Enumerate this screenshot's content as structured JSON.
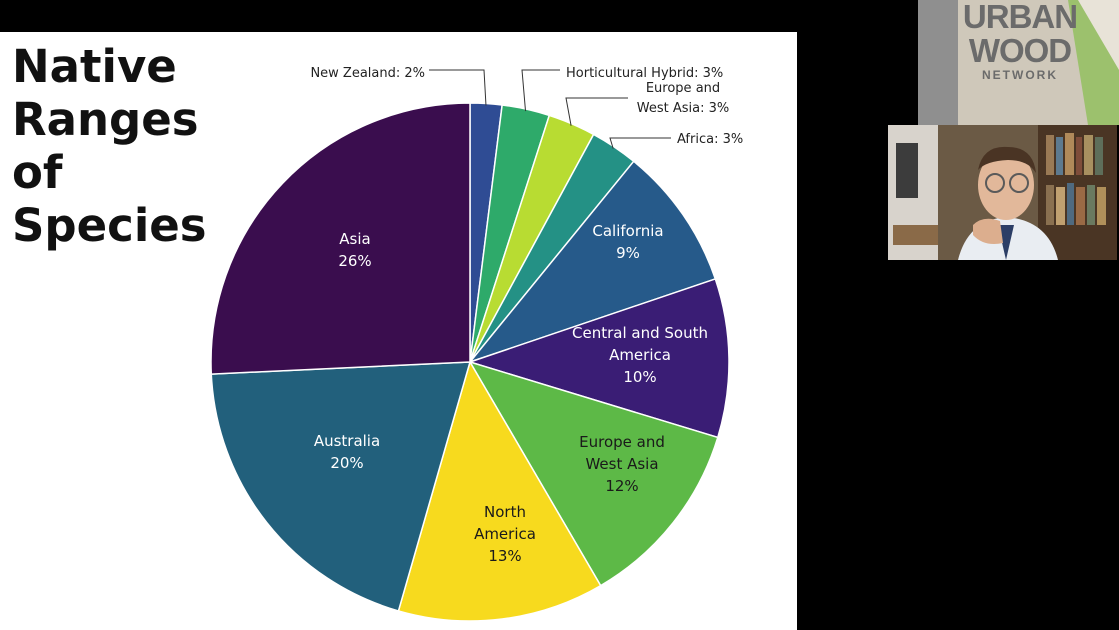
{
  "slide": {
    "title_lines": [
      "Native",
      "Ranges of",
      "Species"
    ]
  },
  "chart_data": {
    "type": "pie",
    "title": "Native Ranges of Species",
    "slices": [
      {
        "name": "New Zealand",
        "value": 2,
        "label_text": "New Zealand: 2%",
        "color": "#2f4c94"
      },
      {
        "name": "Horticultural Hybrid",
        "value": 3,
        "label_text": "Horticultural Hybrid: 3%",
        "color": "#2eaa6a"
      },
      {
        "name": "Europe and West Asia",
        "value": 3,
        "label_lines": [
          "Europe and",
          "West Asia: 3%"
        ],
        "color": "#b8dc32"
      },
      {
        "name": "Africa",
        "value": 3,
        "label_text": "Africa: 3%",
        "color": "#249185"
      },
      {
        "name": "California",
        "value": 9,
        "label_lines": [
          "California",
          "9%"
        ],
        "color": "#265a8a"
      },
      {
        "name": "Central and South America",
        "value": 10,
        "label_lines": [
          "Central and South",
          "America",
          "10%"
        ],
        "color": "#3a1d75"
      },
      {
        "name": "Europe and West Asia",
        "value": 12,
        "label_lines": [
          "Europe and",
          "West Asia",
          "12%"
        ],
        "color": "#5db947"
      },
      {
        "name": "North America",
        "value": 13,
        "label_lines": [
          "North",
          "America",
          "13%"
        ],
        "color": "#f7da1e"
      },
      {
        "name": "Australia",
        "value": 20,
        "label_lines": [
          "Australia",
          "20%"
        ],
        "color": "#22607c"
      },
      {
        "name": "Asia",
        "value": 26,
        "label_lines": [
          "Asia",
          "26%"
        ],
        "color": "#3a0d4e"
      }
    ]
  },
  "banner": {
    "lines": [
      "URBAN",
      "WOOD"
    ],
    "subline": "NETWORK"
  },
  "video": {
    "icons": [
      "presenter-video"
    ]
  }
}
